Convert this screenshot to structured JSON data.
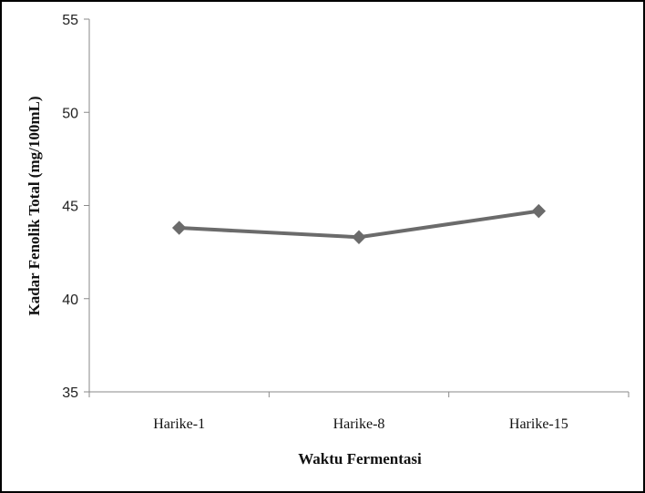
{
  "chart_data": {
    "type": "line",
    "title": "",
    "xlabel": "Waktu Fermentasi",
    "ylabel": "Kadar Fenolik Total (mg/100mL)",
    "categories": [
      "Harike-1",
      "Harike-8",
      "Harike-15"
    ],
    "series": [
      {
        "values": [
          43.8,
          43.3,
          44.7
        ],
        "color": "#6b6b6b",
        "marker": "diamond"
      }
    ],
    "ylim": [
      35,
      55
    ],
    "yticks": [
      35,
      40,
      45,
      50,
      55
    ],
    "grid": false,
    "legend": "none"
  }
}
